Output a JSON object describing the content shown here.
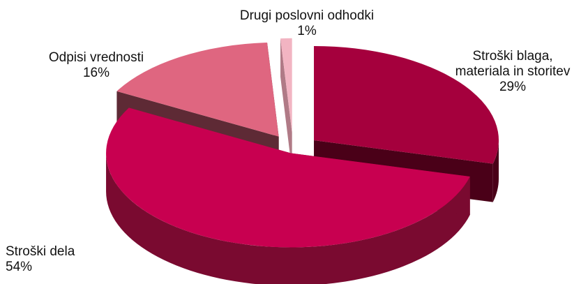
{
  "chart_data": {
    "type": "pie",
    "style": "3d-exploded",
    "slices": [
      {
        "name": "Stroški blaga, materiala in storitev",
        "label_lines": [
          "Stroški blaga,",
          "materiala in storitev"
        ],
        "value": 29,
        "pct_label": "29%",
        "color": "#a5003d",
        "side_color": "#4a0018"
      },
      {
        "name": "Stroški dela",
        "label_lines": [
          "Stroški dela"
        ],
        "value": 54,
        "pct_label": "54%",
        "color": "#c80050",
        "side_color": "#7a0a30"
      },
      {
        "name": "Odpisi vrednosti",
        "label_lines": [
          "Odpisi vrednosti"
        ],
        "value": 16,
        "pct_label": "16%",
        "color": "#df6680",
        "side_color": "#5e2a35"
      },
      {
        "name": "Drugi poslovni odhodki",
        "label_lines": [
          "Drugi poslovni odhodki"
        ],
        "value": 1,
        "pct_label": "1%",
        "color": "#f2b4c2",
        "side_color": "#b07a86"
      }
    ]
  }
}
